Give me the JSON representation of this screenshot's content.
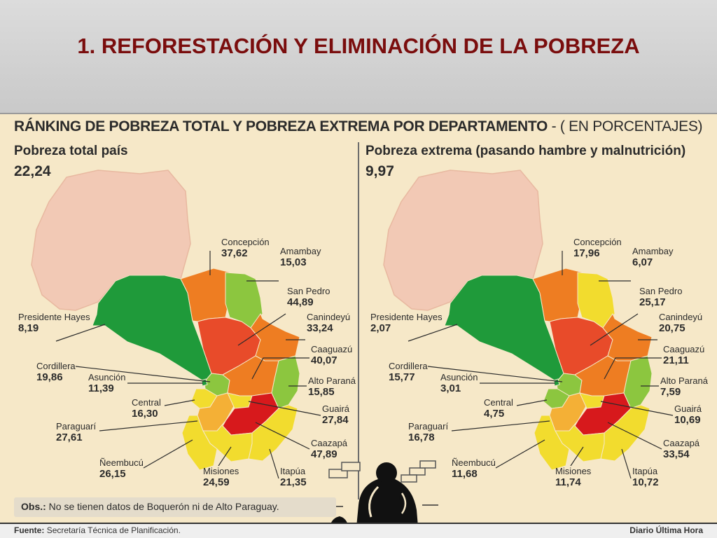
{
  "slide": {
    "title": "1. REFORESTACIÓN Y ELIMINACIÓN DE LA POBREZA"
  },
  "infographic": {
    "title": "RÁNKING DE POBREZA TOTAL Y POBREZA EXTREMA POR DEPARTAMENTO",
    "title_units": "- ( EN PORCENTAJES)",
    "left": {
      "heading": "Pobreza total país",
      "total": "22,24",
      "departments": [
        {
          "name": "Concepción",
          "value": "37,62"
        },
        {
          "name": "Amambay",
          "value": "15,03"
        },
        {
          "name": "San Pedro",
          "value": "44,89"
        },
        {
          "name": "Canindeyú",
          "value": "33,24"
        },
        {
          "name": "Caaguazú",
          "value": "40,07"
        },
        {
          "name": "Alto Paraná",
          "value": "15,85"
        },
        {
          "name": "Guairá",
          "value": "27,84"
        },
        {
          "name": "Caazapá",
          "value": "47,89"
        },
        {
          "name": "Itapúa",
          "value": "21,35"
        },
        {
          "name": "Misiones",
          "value": "24,59"
        },
        {
          "name": "Ñeembucú",
          "value": "26,15"
        },
        {
          "name": "Paraguarí",
          "value": "27,61"
        },
        {
          "name": "Central",
          "value": "16,30"
        },
        {
          "name": "Asunción",
          "value": "11,39"
        },
        {
          "name": "Cordillera",
          "value": "19,86"
        },
        {
          "name": "Presidente Hayes",
          "value": "8,19"
        }
      ]
    },
    "right": {
      "heading": "Pobreza extrema (pasando hambre y malnutrición)",
      "total": "9,97",
      "departments": [
        {
          "name": "Concepción",
          "value": "17,96"
        },
        {
          "name": "Amambay",
          "value": "6,07"
        },
        {
          "name": "San Pedro",
          "value": "25,17"
        },
        {
          "name": "Canindeyú",
          "value": "20,75"
        },
        {
          "name": "Caaguazú",
          "value": "21,11"
        },
        {
          "name": "Alto Paraná",
          "value": "7,59"
        },
        {
          "name": "Guairá",
          "value": "10,69"
        },
        {
          "name": "Caazapá",
          "value": "33,54"
        },
        {
          "name": "Itapúa",
          "value": "10,72"
        },
        {
          "name": "Misiones",
          "value": "11,74"
        },
        {
          "name": "Ñeembucú",
          "value": "11,68"
        },
        {
          "name": "Paraguarí",
          "value": "16,78"
        },
        {
          "name": "Central",
          "value": "4,75"
        },
        {
          "name": "Asunción",
          "value": "3,01"
        },
        {
          "name": "Cordillera",
          "value": "15,77"
        },
        {
          "name": "Presidente Hayes",
          "value": "2,07"
        }
      ]
    },
    "obs_label": "Obs.:",
    "obs_text": "No se tienen datos de Boquerón ni de Alto Paraguay.",
    "source_label": "Fuente:",
    "source_text": "Secretaría Técnica de Planificación.",
    "credit": "Diario Última Hora"
  },
  "colors": {
    "title": "#7a0d0d",
    "background": "#f6e8c8",
    "chaco": "#f2c9b5",
    "dark_green": "#1f9a3a",
    "light_green": "#8cc63f",
    "yellow": "#f2dc2e",
    "light_orange": "#f4b036",
    "orange": "#ee7d22",
    "red_orange": "#e84b2a",
    "red": "#d7191c"
  }
}
